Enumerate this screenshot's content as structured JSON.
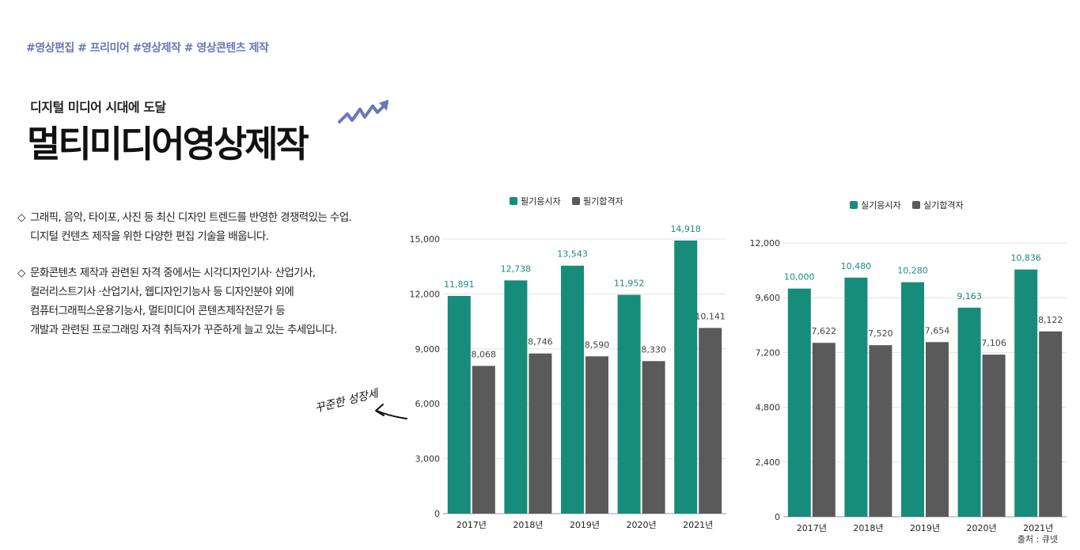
{
  "header": {
    "hashtags": "#영상편집 # 프리미어 #영상제작 # 영상콘텐츠 제작",
    "subtitle": "디지털 미디어 시대에 도달",
    "title": "멀티미디어영상제작"
  },
  "description": {
    "bullet_symbol": "◇",
    "paragraphs": [
      [
        "그래픽, 음악, 타이포, 사진 등 최신 디자인 트렌드를 반영한 경쟁력있는 수업.",
        "디지털 컨텐츠 제작을 위한 다양한 편집 기술을 배웁니다."
      ],
      [
        "문화콘텐츠 제작과 관련된 자격 중에서는 시각디자인기사· 산업기사,",
        "컬러리스트기사 ·산업기사, 웹디자인기능사 등 디자인분야 외에",
        "컴퓨터그래픽스운용기능사, 멀티미디어 콘텐츠제작전문가 등",
        "개발과 관련된 프로그래밍 자격 취득자가 꾸준하게 늘고 있는 추세입니다."
      ]
    ]
  },
  "annotation": {
    "hand_note": "꾸준한 성장세"
  },
  "source": "출처 : 큐넷",
  "colors": {
    "accent": "#6a77b8",
    "teal": "#178c7b",
    "gray": "#5a5a5a",
    "grid": "#e3e3e3"
  },
  "chart_data": [
    {
      "type": "bar",
      "categories": [
        "2017년",
        "2018년",
        "2019년",
        "2020년",
        "2021년"
      ],
      "series": [
        {
          "name": "필기응시자",
          "values": [
            11891,
            12738,
            13543,
            11952,
            14918
          ],
          "labels": [
            "11,891",
            "12,738",
            "13,543",
            "11,952",
            "14,918"
          ],
          "color": "#178c7b"
        },
        {
          "name": "필기합격자",
          "values": [
            8068,
            8746,
            8590,
            8330,
            10141
          ],
          "labels": [
            "8,068",
            "8,746",
            "8,590",
            "8,330",
            "10,141"
          ],
          "color": "#5a5a5a"
        }
      ],
      "yticks": [
        "0",
        "3,000",
        "6,000",
        "9,000",
        "12,000",
        "15,000"
      ],
      "ylim": [
        0,
        15000
      ],
      "legend": "top",
      "grid": true
    },
    {
      "type": "bar",
      "categories": [
        "2017년",
        "2018년",
        "2019년",
        "2020년",
        "2021년"
      ],
      "series": [
        {
          "name": "실기응시자",
          "values": [
            10000,
            10480,
            10280,
            9163,
            10836
          ],
          "labels": [
            "10,000",
            "10,480",
            "10,280",
            "9,163",
            "10,836"
          ],
          "color": "#178c7b"
        },
        {
          "name": "실기합격자",
          "values": [
            7622,
            7520,
            7654,
            7106,
            8122
          ],
          "labels": [
            "7,622",
            "7,520",
            "7,654",
            "7,106",
            "8,122"
          ],
          "color": "#5a5a5a"
        }
      ],
      "yticks": [
        "0",
        "2,400",
        "4,800",
        "7,200",
        "9,600",
        "12,000"
      ],
      "ylim": [
        0,
        12000
      ],
      "legend": "top",
      "grid": true
    }
  ]
}
